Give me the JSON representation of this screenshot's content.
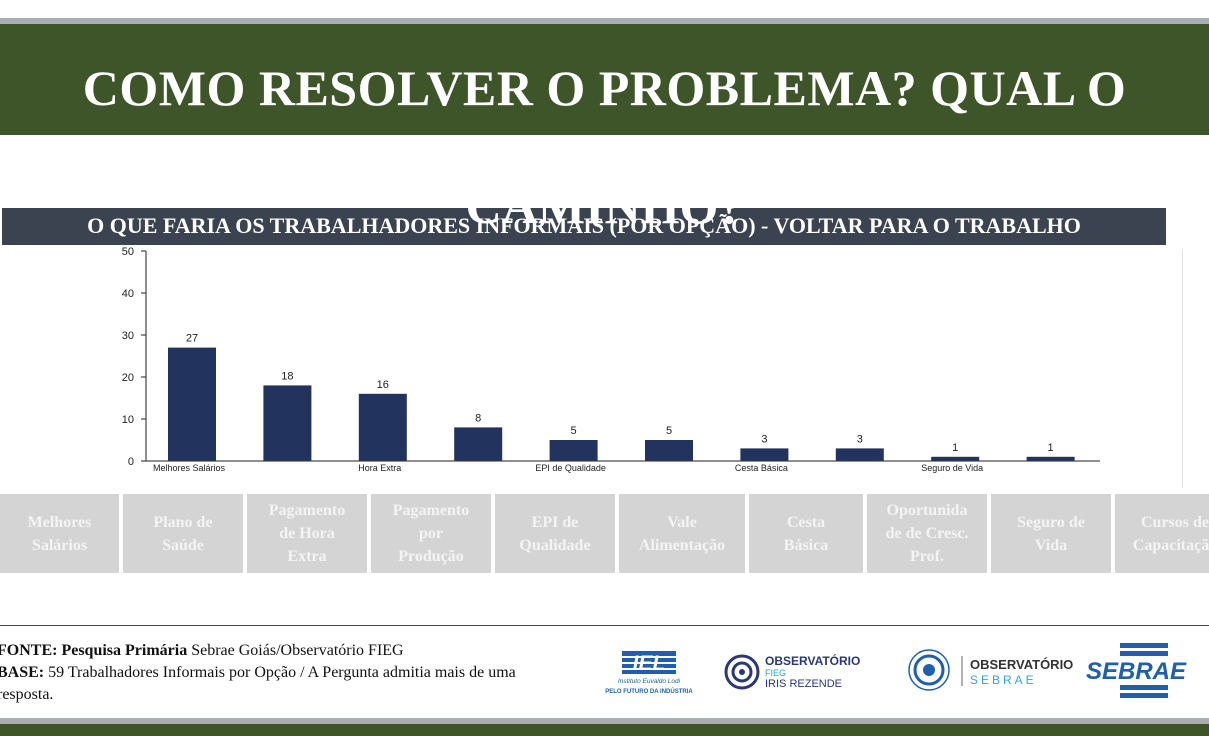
{
  "header": {
    "title_line1": "COMO RESOLVER O PROBLEMA? QUAL O",
    "title_line2": "CAMINHO?",
    "subtitle": "O QUE FARIA OS TRABALHADORES INFORMAIS (POR OPÇÃO) -  VOLTAR PARA O TRABALHO"
  },
  "chart_data": {
    "type": "bar",
    "categories": [
      "Melhores Salários",
      "Plano de Saúde",
      "Pagamento de Hora Extra",
      "Pagamento por Produção",
      "EPI de Qualidade",
      "Vale Alimentação",
      "Cesta Básica",
      "Oportunidade de Cresc. Prof.",
      "Seguro de Vida",
      "Cursos de Capacitação"
    ],
    "axis_labels": [
      "Melhores Salários",
      "",
      "Hora Extra",
      "",
      "EPI de Qualidade",
      "",
      "Cesta Básica",
      "",
      "Seguro de Vida",
      ""
    ],
    "values": [
      27,
      18,
      16,
      8,
      5,
      5,
      3,
      3,
      1,
      1
    ],
    "ylim": [
      0,
      50
    ],
    "yticks": [
      0,
      10,
      20,
      30,
      40,
      50
    ],
    "grid": false,
    "bar_color": "#22335e"
  },
  "options": [
    [
      "Melhores",
      "Salários"
    ],
    [
      "Plano de",
      "Saúde"
    ],
    [
      "Pagamento",
      "de Hora",
      "Extra"
    ],
    [
      "Pagamento",
      "por",
      "Produção"
    ],
    [
      "EPI de",
      "Qualidade"
    ],
    [
      "Vale",
      "Alimentação"
    ],
    [
      "Cesta",
      "Básica"
    ],
    [
      "Oportunida",
      "de de Cresc.",
      "Prof."
    ],
    [
      "Seguro de",
      "Vida"
    ],
    [
      "Cursos de",
      "Capacitação"
    ]
  ],
  "footer": {
    "fonte_label": "FONTE:",
    "fonte_bold": "Pesquisa Primária",
    "fonte_rest": "Sebrae Goiás/Observatório FIEG",
    "base_label": "BASE:",
    "base_line1": "59 Trabalhadores Informais por Opção / A Pergunta admitia mais de uma",
    "base_line2": "resposta."
  },
  "logos": {
    "iel_mark": "IEL",
    "iel_name": "Instituto Euvaldo Lodi",
    "iel_tagline": "PELO FUTURO DA INDÚSTRIA",
    "obs_fieg_title": "OBSERVATÓRIO",
    "obs_fieg_line2": "FIEG",
    "obs_fieg_line3": "IRIS REZENDE",
    "obs_sebrae_title": "OBSERVATÓRIO",
    "obs_sebrae_line2": "SEBRAE",
    "sebrae": "SEBRAE"
  },
  "colors": {
    "banner": "#3d5529",
    "subtitle_bar": "#3b4250",
    "option_box": "#d4d4d4",
    "sebrae_blue": "#1f5fae"
  }
}
